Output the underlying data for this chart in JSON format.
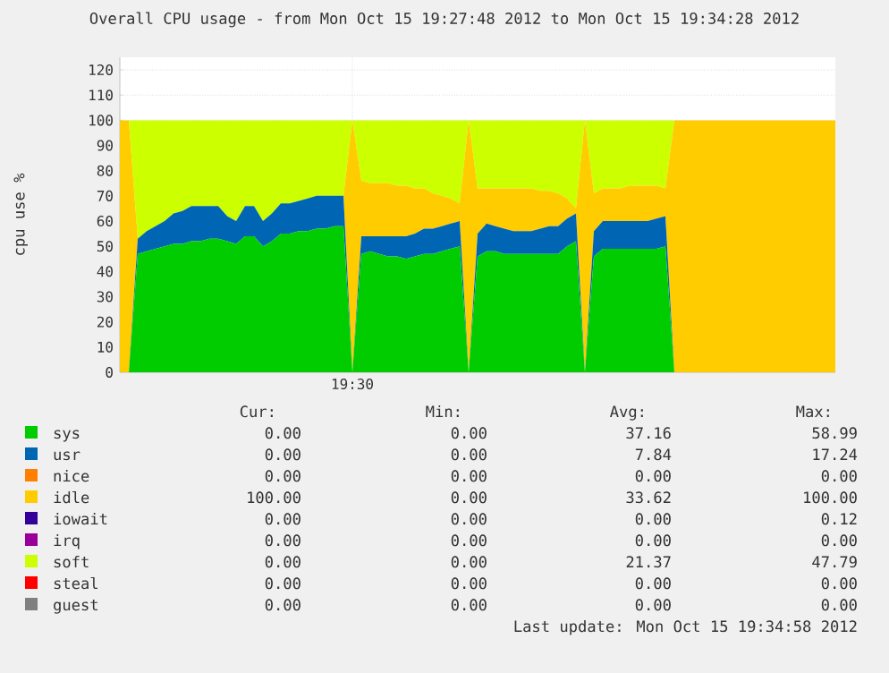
{
  "chart_data": {
    "type": "area",
    "stacked": true,
    "title": "Overall CPU usage - from Mon Oct 15 19:27:48 2012 to Mon Oct 15 19:34:28 2012",
    "ylabel": "cpu use %",
    "categories": [
      null,
      null,
      null,
      null,
      null,
      null,
      null,
      null,
      null,
      null,
      null,
      null,
      null,
      null,
      null,
      null,
      null,
      null,
      null,
      null,
      null,
      null,
      null,
      null,
      null,
      null,
      "19:30",
      null,
      null,
      null,
      null,
      null,
      null,
      null,
      null,
      null,
      null,
      null,
      null,
      null,
      null,
      null,
      null,
      null,
      null,
      null,
      null,
      null,
      null,
      null,
      null,
      null,
      null,
      null,
      null,
      null,
      null,
      null,
      null,
      null,
      null,
      null,
      null,
      null,
      null,
      null,
      null,
      null,
      null,
      null,
      null,
      null,
      null,
      null,
      null,
      null,
      null,
      null,
      null,
      null,
      null
    ],
    "series": [
      {
        "name": "sys",
        "color": "#00cc00",
        "values": [
          0,
          0,
          47,
          48,
          49,
          50,
          51,
          51,
          52,
          52,
          53,
          53,
          52,
          51,
          54,
          54,
          50,
          52,
          55,
          55,
          56,
          56,
          57,
          57,
          58,
          58,
          0,
          47,
          48,
          47,
          46,
          46,
          45,
          46,
          47,
          47,
          48,
          49,
          50,
          0,
          46,
          48,
          48,
          47,
          47,
          47,
          47,
          47,
          47,
          47,
          50,
          52,
          0,
          46,
          49,
          49,
          49,
          49,
          49,
          49,
          49,
          50,
          0,
          0,
          0,
          0,
          0,
          0,
          0,
          0,
          0,
          0,
          0,
          0,
          0,
          0,
          0,
          0,
          0,
          0,
          0
        ]
      },
      {
        "name": "usr",
        "color": "#0066b3",
        "values": [
          0,
          0,
          6,
          8,
          9,
          10,
          12,
          13,
          14,
          14,
          13,
          13,
          10,
          9,
          12,
          12,
          10,
          11,
          12,
          12,
          12,
          13,
          13,
          13,
          12,
          12,
          0,
          7,
          6,
          7,
          8,
          8,
          9,
          9,
          10,
          10,
          10,
          10,
          10,
          0,
          9,
          11,
          10,
          10,
          9,
          9,
          9,
          10,
          11,
          11,
          11,
          11,
          0,
          10,
          11,
          11,
          11,
          11,
          11,
          11,
          12,
          12,
          0,
          0,
          0,
          0,
          0,
          0,
          0,
          0,
          0,
          0,
          0,
          0,
          0,
          0,
          0,
          0,
          0,
          0,
          0
        ]
      },
      {
        "name": "nice",
        "color": "#ff8000",
        "values": [
          null,
          null,
          null,
          null,
          null,
          null,
          null,
          null,
          null,
          null,
          null,
          null,
          null,
          null,
          null,
          null,
          null,
          null,
          null,
          null,
          null,
          null,
          null,
          null,
          null,
          null,
          null,
          null,
          null,
          null,
          null,
          null,
          null,
          null,
          null,
          null,
          null,
          null,
          null,
          null,
          null,
          null,
          null,
          null,
          null,
          null,
          null,
          null,
          null,
          null,
          null,
          null,
          null,
          null,
          null,
          null,
          null,
          null,
          null,
          null,
          null,
          null,
          null,
          null,
          null,
          null,
          null,
          null,
          null,
          null,
          null,
          null,
          null,
          null,
          null,
          null,
          null,
          null,
          null,
          null,
          null
        ]
      },
      {
        "name": "idle",
        "color": "#ffcc00",
        "values": [
          100,
          100,
          0,
          0,
          0,
          0,
          0,
          0,
          0,
          0,
          0,
          0,
          0,
          0,
          0,
          0,
          0,
          0,
          0,
          0,
          0,
          0,
          0,
          0,
          0,
          0,
          100,
          22,
          21,
          21,
          21,
          20,
          20,
          18,
          16,
          14,
          12,
          10,
          7,
          100,
          18,
          14,
          15,
          16,
          17,
          17,
          17,
          15,
          14,
          13,
          8,
          2,
          100,
          15,
          13,
          13,
          13,
          14,
          14,
          14,
          13,
          11,
          100,
          100,
          100,
          100,
          100,
          100,
          100,
          100,
          100,
          100,
          100,
          100,
          100,
          100,
          100,
          100,
          100,
          100,
          100
        ]
      },
      {
        "name": "iowait",
        "color": "#330099",
        "values": [
          null,
          null,
          null,
          null,
          null,
          null,
          null,
          null,
          null,
          null,
          null,
          null,
          null,
          null,
          null,
          null,
          null,
          null,
          null,
          null,
          null,
          null,
          null,
          null,
          null,
          null,
          null,
          null,
          null,
          null,
          null,
          null,
          null,
          null,
          null,
          null,
          null,
          null,
          null,
          null,
          null,
          null,
          null,
          null,
          null,
          null,
          null,
          null,
          null,
          null,
          null,
          null,
          null,
          null,
          null,
          null,
          null,
          null,
          null,
          null,
          null,
          null,
          null,
          null,
          null,
          null,
          null,
          null,
          null,
          null,
          null,
          null,
          null,
          null,
          null,
          null,
          null,
          null,
          null,
          null,
          null
        ]
      },
      {
        "name": "irq",
        "color": "#990099",
        "values": [
          null,
          null,
          null,
          null,
          null,
          null,
          null,
          null,
          null,
          null,
          null,
          null,
          null,
          null,
          null,
          null,
          null,
          null,
          null,
          null,
          null,
          null,
          null,
          null,
          null,
          null,
          null,
          null,
          null,
          null,
          null,
          null,
          null,
          null,
          null,
          null,
          null,
          null,
          null,
          null,
          null,
          null,
          null,
          null,
          null,
          null,
          null,
          null,
          null,
          null,
          null,
          null,
          null,
          null,
          null,
          null,
          null,
          null,
          null,
          null,
          null,
          null,
          null,
          null,
          null,
          null,
          null,
          null,
          null,
          null,
          null,
          null,
          null,
          null,
          null,
          null,
          null,
          null,
          null,
          null,
          null
        ]
      },
      {
        "name": "soft",
        "color": "#ccff00",
        "values": [
          0,
          0,
          47,
          44,
          42,
          40,
          37,
          36,
          34,
          34,
          34,
          34,
          38,
          40,
          34,
          34,
          40,
          37,
          33,
          33,
          32,
          31,
          30,
          30,
          30,
          30,
          0,
          24,
          25,
          25,
          25,
          26,
          26,
          27,
          27,
          29,
          30,
          31,
          33,
          0,
          27,
          27,
          27,
          27,
          27,
          27,
          27,
          28,
          28,
          29,
          31,
          35,
          0,
          29,
          27,
          27,
          27,
          26,
          26,
          26,
          26,
          27,
          0,
          0,
          0,
          0,
          0,
          0,
          0,
          0,
          0,
          0,
          0,
          0,
          0,
          0,
          0,
          0,
          0,
          0,
          0
        ]
      },
      {
        "name": "steal",
        "color": "#ff0000",
        "values": [
          null,
          null,
          null,
          null,
          null,
          null,
          null,
          null,
          null,
          null,
          null,
          null,
          null,
          null,
          null,
          null,
          null,
          null,
          null,
          null,
          null,
          null,
          null,
          null,
          null,
          null,
          null,
          null,
          null,
          null,
          null,
          null,
          null,
          null,
          null,
          null,
          null,
          null,
          null,
          null,
          null,
          null,
          null,
          null,
          null,
          null,
          null,
          null,
          null,
          null,
          null,
          null,
          null,
          null,
          null,
          null,
          null,
          null,
          null,
          null,
          null,
          null,
          null,
          null,
          null,
          null,
          null,
          null,
          null,
          null,
          null,
          null,
          null,
          null,
          null,
          null,
          null,
          null,
          null,
          null,
          null
        ]
      },
      {
        "name": "guest",
        "color": "#808080",
        "values": [
          null,
          null,
          null,
          null,
          null,
          null,
          null,
          null,
          null,
          null,
          null,
          null,
          null,
          null,
          null,
          null,
          null,
          null,
          null,
          null,
          null,
          null,
          null,
          null,
          null,
          null,
          null,
          null,
          null,
          null,
          null,
          null,
          null,
          null,
          null,
          null,
          null,
          null,
          null,
          null,
          null,
          null,
          null,
          null,
          null,
          null,
          null,
          null,
          null,
          null,
          null,
          null,
          null,
          null,
          null,
          null,
          null,
          null,
          null,
          null,
          null,
          null,
          null,
          null,
          null,
          null,
          null,
          null,
          null,
          null,
          null,
          null,
          null,
          null,
          null,
          null,
          null,
          null,
          null,
          null,
          null
        ]
      }
    ],
    "ylim": [
      0,
      125
    ],
    "yticks": [
      {
        "value": 0,
        "label": "0"
      },
      {
        "value": 10,
        "label": "10"
      },
      {
        "value": 20,
        "label": "20"
      },
      {
        "value": 30,
        "label": "30"
      },
      {
        "value": 40,
        "label": "40"
      },
      {
        "value": 50,
        "label": "50"
      },
      {
        "value": 60,
        "label": "60"
      },
      {
        "value": 70,
        "label": "70"
      },
      {
        "value": 80,
        "label": "80"
      },
      {
        "value": 90,
        "label": "90"
      },
      {
        "value": 100,
        "label": "100"
      },
      {
        "value": 110,
        "label": "110"
      },
      {
        "value": 120,
        "label": "120"
      }
    ],
    "grid": true,
    "legend": "bottom",
    "annotations": [
      "Cur:",
      "Min:",
      "Avg:",
      "Max:",
      "0.00",
      "0.00",
      "37.16",
      "58.99",
      "0.00",
      "0.00",
      "7.84",
      "17.24",
      "0.00",
      "0.00",
      "0.00",
      "0.00",
      "100.00",
      "0.00",
      "33.62",
      "100.00",
      "0.00",
      "0.00",
      "0.00",
      "0.12",
      "0.00",
      "0.00",
      "0.00",
      "0.00",
      "0.00",
      "0.00",
      "21.37",
      "47.79",
      "0.00",
      "0.00",
      "0.00",
      "0.00",
      "0.00",
      "0.00",
      "0.00",
      "0.00",
      "Last update: Mon Oct 15 19:34:58 2012"
    ]
  }
}
